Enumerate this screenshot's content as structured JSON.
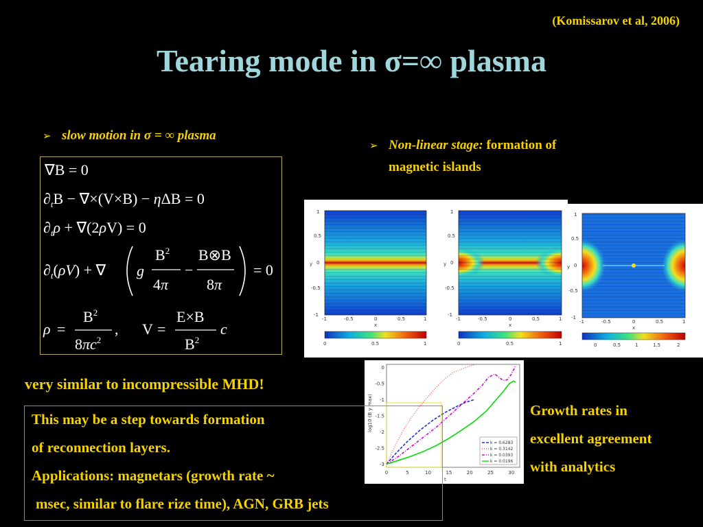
{
  "citation": "(Komissarov et al, 2006)",
  "title": "Tearing mode in σ=∞ plasma",
  "bullet_left": "slow motion in σ = ∞ plasma",
  "bullet_right": {
    "lead": "Non-linear stage:",
    "rest": "formation of",
    "line2": "magnetic islands"
  },
  "equations": {
    "eq1": "∇B = 0",
    "eq2": "∂tB − ∇×(V×B) − ηΔB = 0",
    "eq3": "∂tρ + ∇(2ρV) = 0",
    "eq4": "∂t(ρV) + ∇( g B²/4π − B⊗B/8π ) = 0",
    "eq5": "ρ = B²/(8πc²),  V = (E×B/B²) c"
  },
  "field_plots": {
    "y_ticks": [
      "1",
      "0.5",
      "0",
      "-0.5",
      "-1"
    ],
    "x_ticks": [
      "-1",
      "-0.5",
      "0",
      "0.5",
      "1"
    ],
    "x_label": "x",
    "y_label": "y",
    "colorbar_ticks_12": [
      "0",
      "0.5",
      "1"
    ],
    "colorbar_ticks_3": [
      "0",
      "0.5",
      "1",
      "1.5",
      "2"
    ]
  },
  "chart_data": {
    "type": "line",
    "title": "",
    "xlabel": "t",
    "ylabel": "log10 (B y max)",
    "xlim": [
      0,
      32
    ],
    "ylim": [
      -3.1,
      0.1
    ],
    "x_ticks": [
      "0",
      "5",
      "10",
      "15",
      "20",
      "25",
      "30"
    ],
    "y_ticks": [
      "0",
      "-0.5",
      "-1",
      "-1.5",
      "-2",
      "-2.5",
      "-3"
    ],
    "legend_position": "bottom-right",
    "series": [
      {
        "name": "k = 0.6283",
        "color": "#1a2fd6",
        "style": "dashed",
        "points": [
          [
            0,
            -3.0
          ],
          [
            2,
            -2.7
          ],
          [
            5,
            -2.3
          ],
          [
            8,
            -1.95
          ],
          [
            11,
            -1.65
          ],
          [
            14,
            -1.4
          ],
          [
            17,
            -1.2
          ],
          [
            19,
            -1.08
          ],
          [
            21,
            -1.0
          ]
        ]
      },
      {
        "name": "k = 0.3142",
        "color": "#ff4a4a",
        "style": "dotted",
        "points": [
          [
            0,
            -3.0
          ],
          [
            2,
            -2.45
          ],
          [
            4,
            -1.95
          ],
          [
            6,
            -1.55
          ],
          [
            8,
            -1.2
          ],
          [
            10,
            -0.9
          ],
          [
            12,
            -0.6
          ],
          [
            14,
            -0.35
          ],
          [
            16,
            -0.15
          ],
          [
            18,
            -0.05
          ],
          [
            20,
            0.05
          ],
          [
            21,
            0.08
          ]
        ]
      },
      {
        "name": "k = 0.0393",
        "color": "#d600d6",
        "style": "dashdot",
        "points": [
          [
            0,
            -3.0
          ],
          [
            3,
            -2.75
          ],
          [
            6,
            -2.45
          ],
          [
            9,
            -2.15
          ],
          [
            12,
            -1.85
          ],
          [
            15,
            -1.5
          ],
          [
            18,
            -1.15
          ],
          [
            21,
            -0.8
          ],
          [
            23,
            -0.55
          ],
          [
            24.5,
            -0.3
          ],
          [
            26,
            -0.2
          ],
          [
            27,
            -0.3
          ],
          [
            28,
            -0.4
          ],
          [
            29,
            -0.38
          ],
          [
            30,
            -0.2
          ],
          [
            31,
            0.05
          ]
        ]
      },
      {
        "name": "k = 0.0196",
        "color": "#00dd00",
        "style": "solid",
        "points": [
          [
            0,
            -3.0
          ],
          [
            3,
            -2.88
          ],
          [
            6,
            -2.75
          ],
          [
            9,
            -2.6
          ],
          [
            12,
            -2.42
          ],
          [
            15,
            -2.2
          ],
          [
            18,
            -1.95
          ],
          [
            21,
            -1.68
          ],
          [
            24,
            -1.35
          ],
          [
            26,
            -1.05
          ],
          [
            28,
            -0.75
          ],
          [
            29.5,
            -0.5
          ],
          [
            30.5,
            -0.42
          ],
          [
            31,
            -0.45
          ]
        ]
      }
    ]
  },
  "similar_text": "very similar to incompressible MHD!",
  "note": {
    "line1": "This may be a step towards formation",
    "line2": "of  reconnection layers.",
    "line3": "Applications: magnetars (growth rate ~",
    "line4": "msec, similar to flare rize time),  AGN, GRB jets"
  },
  "right_text": {
    "line1": "Growth rates in",
    "line2": "excellent agreement",
    "line3": "with analytics"
  }
}
